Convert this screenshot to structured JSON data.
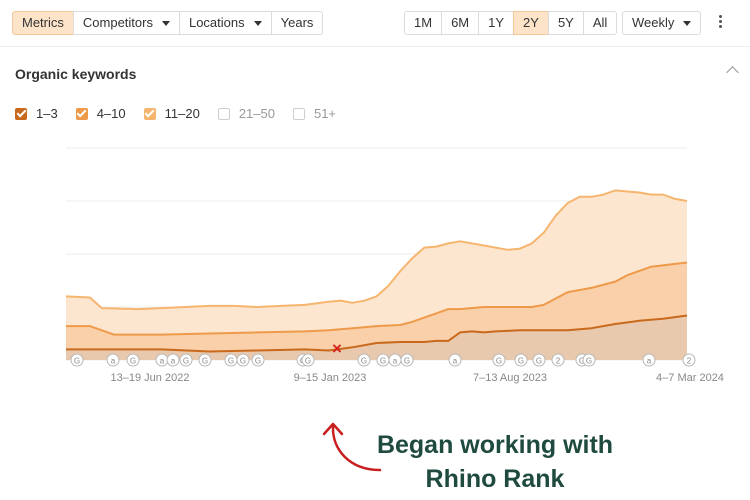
{
  "toolbar": {
    "tabs": [
      {
        "label": "Metrics",
        "active": true
      },
      {
        "label": "Competitors",
        "dropdown": true
      },
      {
        "label": "Locations",
        "dropdown": true
      },
      {
        "label": "Years"
      }
    ],
    "ranges": [
      {
        "label": "1M"
      },
      {
        "label": "6M"
      },
      {
        "label": "1Y"
      },
      {
        "label": "2Y",
        "active": true
      },
      {
        "label": "5Y"
      },
      {
        "label": "All"
      }
    ],
    "interval": "Weekly"
  },
  "panel": {
    "title": "Organic keywords"
  },
  "legend": [
    {
      "label": "1–3",
      "checked": true,
      "color": "#c8691c"
    },
    {
      "label": "4–10",
      "checked": true,
      "color": "#ee9a4a"
    },
    {
      "label": "11–20",
      "checked": true,
      "color": "#f6b56f"
    },
    {
      "label": "21–50",
      "checked": false
    },
    {
      "label": "51+",
      "checked": false
    }
  ],
  "chart_data": {
    "type": "area",
    "stacked": true,
    "x_ticks": [
      "13–19 Jun 2022",
      "9–15 Jan 2023",
      "7–13 Aug 2023",
      "4–7 Mar 2024"
    ],
    "x_range": [
      0,
      104
    ],
    "ylim": [
      0,
      100
    ],
    "y_tick_labels": false,
    "grid": true,
    "legend_position": "top-left",
    "series": [
      {
        "name": "1–3",
        "color": "#c8691c",
        "points": [
          [
            0,
            5
          ],
          [
            8,
            5
          ],
          [
            16,
            5
          ],
          [
            24,
            4
          ],
          [
            32,
            4.5
          ],
          [
            40,
            5
          ],
          [
            44,
            4.5
          ],
          [
            48,
            6
          ],
          [
            52,
            8
          ],
          [
            56,
            8.5
          ],
          [
            60,
            8.5
          ],
          [
            62,
            9
          ],
          [
            64,
            9
          ],
          [
            66,
            13
          ],
          [
            68,
            13.5
          ],
          [
            70,
            13
          ],
          [
            72,
            13.5
          ],
          [
            76,
            14
          ],
          [
            80,
            14
          ],
          [
            84,
            14
          ],
          [
            88,
            15
          ],
          [
            92,
            17
          ],
          [
            96,
            18.5
          ],
          [
            100,
            19.5
          ],
          [
            104,
            21
          ]
        ]
      },
      {
        "name": "4–10",
        "color": "#ee9a4a",
        "points": [
          [
            0,
            16
          ],
          [
            4,
            16
          ],
          [
            8,
            12
          ],
          [
            16,
            12
          ],
          [
            24,
            12.5
          ],
          [
            32,
            13
          ],
          [
            40,
            13.5
          ],
          [
            44,
            14
          ],
          [
            48,
            15
          ],
          [
            52,
            16
          ],
          [
            56,
            16.5
          ],
          [
            58,
            18
          ],
          [
            60,
            20
          ],
          [
            62,
            22
          ],
          [
            64,
            24
          ],
          [
            66,
            24
          ],
          [
            70,
            25
          ],
          [
            74,
            25
          ],
          [
            78,
            25
          ],
          [
            80,
            26
          ],
          [
            82,
            29
          ],
          [
            84,
            32
          ],
          [
            86,
            33
          ],
          [
            88,
            34
          ],
          [
            92,
            37
          ],
          [
            94,
            40
          ],
          [
            98,
            44
          ],
          [
            101,
            45
          ],
          [
            104,
            46
          ]
        ]
      },
      {
        "name": "11–20",
        "color": "#f6b56f",
        "points": [
          [
            0,
            30
          ],
          [
            4,
            29.5
          ],
          [
            6,
            24.5
          ],
          [
            12,
            24
          ],
          [
            16,
            24.5
          ],
          [
            20,
            25
          ],
          [
            24,
            25.5
          ],
          [
            28,
            25.5
          ],
          [
            32,
            25
          ],
          [
            36,
            25.5
          ],
          [
            40,
            26
          ],
          [
            44,
            27.5
          ],
          [
            46,
            28
          ],
          [
            48,
            27
          ],
          [
            50,
            28
          ],
          [
            52,
            30
          ],
          [
            54,
            35
          ],
          [
            56,
            42
          ],
          [
            58,
            48
          ],
          [
            60,
            53
          ],
          [
            62,
            53.5
          ],
          [
            64,
            55
          ],
          [
            66,
            56
          ],
          [
            70,
            54
          ],
          [
            74,
            52
          ],
          [
            76,
            52.5
          ],
          [
            78,
            55
          ],
          [
            80,
            60
          ],
          [
            82,
            68
          ],
          [
            84,
            74
          ],
          [
            86,
            77
          ],
          [
            88,
            77
          ],
          [
            90,
            78
          ],
          [
            92,
            80
          ],
          [
            94,
            79.5
          ],
          [
            96,
            79
          ],
          [
            98,
            78
          ],
          [
            100,
            78
          ],
          [
            102,
            76
          ],
          [
            104,
            75
          ]
        ]
      }
    ],
    "events_marker": "x"
  },
  "annotation": {
    "line1": "Began working with",
    "line2": "Rhino Rank"
  },
  "colors": {
    "accent": "#f2a65a",
    "active_button": "#fde3c8",
    "annotation_text": "#1f4a3f",
    "annotation_arrow": "#c81e1e"
  }
}
